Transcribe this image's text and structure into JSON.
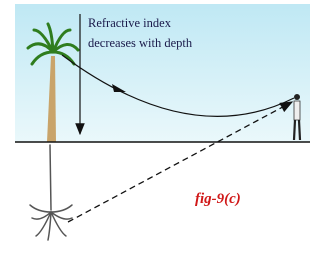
{
  "annotation": {
    "lines": [
      "Refractive index",
      "decreases with depth"
    ]
  },
  "caption": "fig-9(c)"
}
